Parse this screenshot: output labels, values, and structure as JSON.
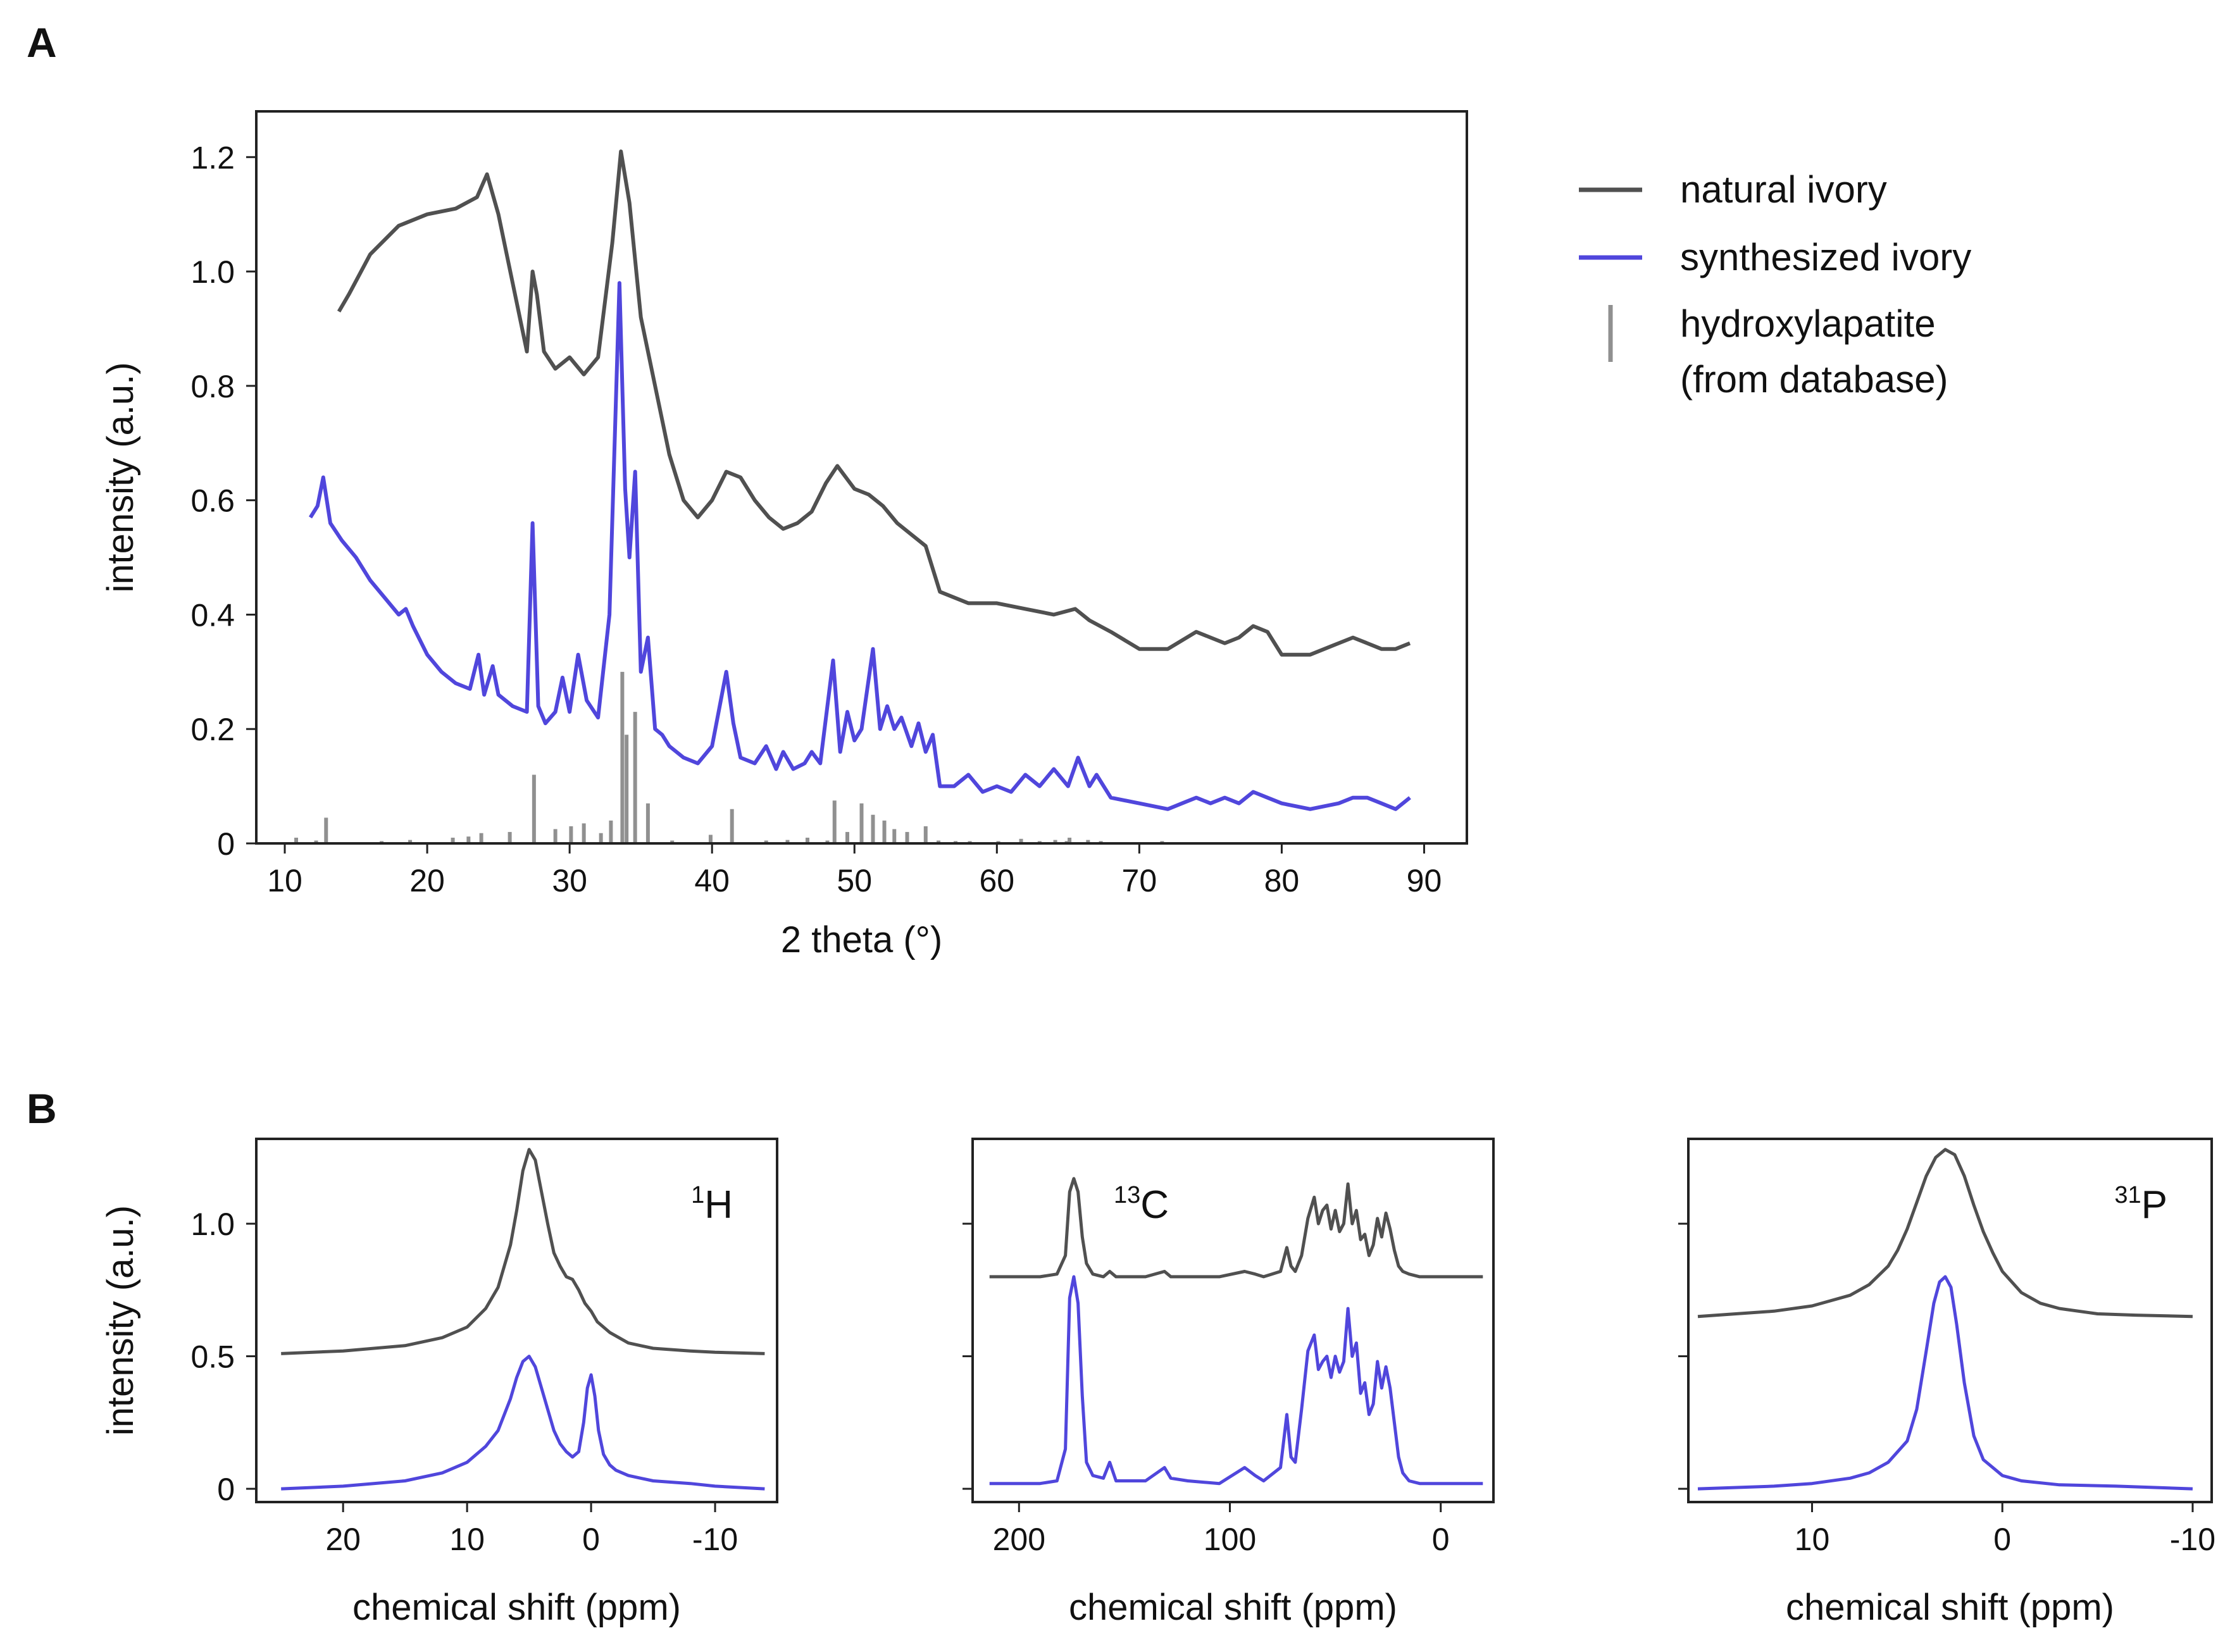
{
  "colors": {
    "natural": "#505050",
    "synthesized": "#5046dc",
    "reference": "#909090",
    "axis": "#222222"
  },
  "panel_labels": {
    "a": "A",
    "b": "B"
  },
  "legend": {
    "natural": "natural ivory",
    "synthesized": "synthesized ivory",
    "reference_line1": "hydroxylapatite",
    "reference_line2": "(from database)"
  },
  "chart_data": [
    {
      "id": "xrd",
      "type": "line",
      "panel": "A",
      "xlabel": "2 theta (°)",
      "ylabel": "intensity (a.u.)",
      "xlim": [
        8,
        93
      ],
      "ylim": [
        0,
        1.28
      ],
      "xticks": [
        10,
        20,
        30,
        40,
        50,
        60,
        70,
        80,
        90
      ],
      "yticks": [
        0,
        0.2,
        0.4,
        0.6,
        0.8,
        1.0,
        1.2
      ],
      "ytick_labels": [
        "0",
        "0.2",
        "0.4",
        "0.6",
        "0.8",
        "1.0",
        "1.2"
      ],
      "series": [
        {
          "name": "natural ivory",
          "color_key": "natural",
          "x": [
            13.8,
            14.5,
            16,
            18,
            20,
            22,
            23.5,
            24.2,
            25,
            26,
            27,
            27.4,
            27.7,
            28.2,
            29,
            30,
            31,
            32,
            33,
            33.6,
            34.2,
            35,
            36,
            37,
            38,
            39,
            40,
            41,
            42,
            43,
            44,
            45,
            46,
            47,
            48,
            48.8,
            50,
            51,
            52,
            53,
            54,
            55,
            56,
            58,
            60,
            62,
            64,
            65.5,
            66.5,
            68,
            70,
            72,
            74,
            75,
            76,
            77,
            78,
            79,
            80,
            82,
            84,
            85,
            86,
            87,
            88,
            89
          ],
          "y": [
            0.93,
            0.96,
            1.03,
            1.08,
            1.1,
            1.11,
            1.13,
            1.17,
            1.1,
            0.98,
            0.86,
            1.0,
            0.96,
            0.86,
            0.83,
            0.85,
            0.82,
            0.85,
            1.05,
            1.21,
            1.12,
            0.92,
            0.8,
            0.68,
            0.6,
            0.57,
            0.6,
            0.65,
            0.64,
            0.6,
            0.57,
            0.55,
            0.56,
            0.58,
            0.63,
            0.66,
            0.62,
            0.61,
            0.59,
            0.56,
            0.54,
            0.52,
            0.44,
            0.42,
            0.42,
            0.41,
            0.4,
            0.41,
            0.39,
            0.37,
            0.34,
            0.34,
            0.37,
            0.36,
            0.35,
            0.36,
            0.38,
            0.37,
            0.33,
            0.33,
            0.35,
            0.36,
            0.35,
            0.34,
            0.34,
            0.35
          ]
        },
        {
          "name": "synthesized ivory",
          "color_key": "synthesized",
          "x": [
            11.8,
            12.3,
            12.7,
            13.2,
            14,
            15,
            16,
            17,
            18,
            18.5,
            19,
            20,
            21,
            22,
            23,
            23.6,
            24,
            24.6,
            25,
            26,
            27,
            27.4,
            27.8,
            28.3,
            29,
            29.5,
            30,
            30.6,
            31.2,
            32,
            32.8,
            33.5,
            33.9,
            34.2,
            34.6,
            35,
            35.5,
            36,
            36.5,
            37,
            38,
            39,
            40,
            41,
            41.5,
            42,
            43,
            43.8,
            44.5,
            45,
            45.7,
            46.5,
            47,
            47.6,
            48.5,
            49,
            49.5,
            50,
            50.5,
            51.3,
            51.8,
            52.3,
            52.8,
            53.3,
            54,
            54.5,
            55,
            55.5,
            56,
            57,
            58,
            59,
            60,
            61,
            62,
            63,
            64,
            65,
            65.7,
            66.5,
            67,
            68,
            70,
            72,
            73,
            74,
            75,
            76,
            77,
            78,
            79,
            80,
            82,
            84,
            85,
            86,
            87,
            88,
            89
          ],
          "y": [
            0.57,
            0.59,
            0.64,
            0.56,
            0.53,
            0.5,
            0.46,
            0.43,
            0.4,
            0.41,
            0.38,
            0.33,
            0.3,
            0.28,
            0.27,
            0.33,
            0.26,
            0.31,
            0.26,
            0.24,
            0.23,
            0.56,
            0.24,
            0.21,
            0.23,
            0.29,
            0.23,
            0.33,
            0.25,
            0.22,
            0.4,
            0.98,
            0.62,
            0.5,
            0.65,
            0.3,
            0.36,
            0.2,
            0.19,
            0.17,
            0.15,
            0.14,
            0.17,
            0.3,
            0.21,
            0.15,
            0.14,
            0.17,
            0.13,
            0.16,
            0.13,
            0.14,
            0.16,
            0.14,
            0.32,
            0.16,
            0.23,
            0.18,
            0.2,
            0.34,
            0.2,
            0.24,
            0.2,
            0.22,
            0.17,
            0.21,
            0.16,
            0.19,
            0.1,
            0.1,
            0.12,
            0.09,
            0.1,
            0.09,
            0.12,
            0.1,
            0.13,
            0.1,
            0.15,
            0.1,
            0.12,
            0.08,
            0.07,
            0.06,
            0.07,
            0.08,
            0.07,
            0.08,
            0.07,
            0.09,
            0.08,
            0.07,
            0.06,
            0.07,
            0.08,
            0.08,
            0.07,
            0.06,
            0.08
          ]
        }
      ],
      "reference_sticks": {
        "name": "hydroxylapatite (from database)",
        "color_key": "reference",
        "x": [
          10.8,
          12.2,
          12.9,
          16.8,
          18.8,
          21.8,
          22.9,
          23.8,
          25.8,
          27.5,
          29.0,
          30.1,
          31.0,
          32.2,
          32.9,
          33.7,
          34.0,
          34.6,
          35.5,
          37.2,
          39.9,
          41.4,
          43.8,
          45.3,
          46.7,
          48.1,
          48.6,
          49.5,
          50.5,
          51.3,
          52.1,
          52.8,
          53.7,
          55.0,
          55.9,
          57.1,
          58.1,
          60.1,
          61.7,
          63.0,
          64.1,
          64.9,
          65.1,
          66.4,
          67.3,
          71.6
        ],
        "y": [
          0.01,
          0.005,
          0.045,
          0.004,
          0.006,
          0.01,
          0.012,
          0.018,
          0.02,
          0.12,
          0.025,
          0.03,
          0.035,
          0.018,
          0.04,
          0.3,
          0.19,
          0.23,
          0.07,
          0.005,
          0.015,
          0.06,
          0.005,
          0.006,
          0.01,
          0.005,
          0.075,
          0.02,
          0.07,
          0.05,
          0.04,
          0.025,
          0.02,
          0.03,
          0.005,
          0.004,
          0.004,
          0.004,
          0.008,
          0.004,
          0.006,
          0.004,
          0.01,
          0.006,
          0.004,
          0.004
        ]
      }
    },
    {
      "id": "nmr-1h",
      "type": "line",
      "panel": "B",
      "nucleus_sup": "1",
      "nucleus": "H",
      "xlabel": "chemical shift (ppm)",
      "ylabel": "intensity (a.u.)",
      "xlim": [
        27,
        -15
      ],
      "ylim": [
        -0.05,
        1.32
      ],
      "xticks": [
        20,
        10,
        0,
        -10
      ],
      "yticks": [
        0,
        0.5,
        1.0
      ],
      "ytick_labels": [
        "0",
        "0.5",
        "1.0"
      ],
      "series": [
        {
          "name": "natural ivory",
          "color_key": "natural",
          "x": [
            25,
            20,
            15,
            12,
            10,
            8.5,
            7.5,
            6.5,
            6,
            5.5,
            5,
            4.5,
            4,
            3.5,
            3,
            2.5,
            2,
            1.5,
            1,
            0.5,
            0,
            -0.5,
            -1.5,
            -3,
            -5,
            -8,
            -10,
            -14
          ],
          "y": [
            0.51,
            0.52,
            0.54,
            0.57,
            0.61,
            0.68,
            0.76,
            0.92,
            1.05,
            1.2,
            1.28,
            1.24,
            1.12,
            1.0,
            0.89,
            0.84,
            0.8,
            0.79,
            0.75,
            0.7,
            0.67,
            0.63,
            0.59,
            0.55,
            0.53,
            0.52,
            0.515,
            0.51
          ]
        },
        {
          "name": "synthesized ivory",
          "color_key": "synthesized",
          "x": [
            25,
            20,
            15,
            12,
            10,
            8.5,
            7.5,
            6.5,
            6,
            5.5,
            5,
            4.5,
            4,
            3.5,
            3,
            2.5,
            2,
            1.5,
            1,
            0.6,
            0.3,
            0,
            -0.3,
            -0.6,
            -1,
            -1.5,
            -2,
            -3,
            -5,
            -8,
            -10,
            -14
          ],
          "y": [
            0.0,
            0.01,
            0.03,
            0.06,
            0.1,
            0.16,
            0.22,
            0.34,
            0.42,
            0.48,
            0.5,
            0.46,
            0.38,
            0.3,
            0.22,
            0.17,
            0.14,
            0.12,
            0.14,
            0.25,
            0.38,
            0.43,
            0.35,
            0.22,
            0.13,
            0.09,
            0.07,
            0.05,
            0.03,
            0.02,
            0.01,
            0.0
          ]
        }
      ]
    },
    {
      "id": "nmr-13c",
      "type": "line",
      "panel": "B",
      "nucleus_sup": "13",
      "nucleus": "C",
      "xlabel": "chemical shift (ppm)",
      "ylabel": "",
      "xlim": [
        222,
        -25
      ],
      "ylim": [
        -0.05,
        1.32
      ],
      "xticks": [
        200,
        100,
        0
      ],
      "yticks": [
        0,
        0.5,
        1.0
      ],
      "ytick_labels": [
        "",
        "",
        ""
      ],
      "series": [
        {
          "name": "natural ivory",
          "color_key": "natural",
          "x": [
            214,
            200,
            190,
            182,
            178,
            176,
            174,
            172,
            170,
            168,
            165,
            160,
            157,
            154,
            140,
            131,
            128,
            120,
            105,
            93,
            88,
            84,
            76,
            73,
            71,
            69,
            66,
            63,
            60,
            58,
            56,
            54,
            52,
            50,
            48,
            46,
            44,
            42,
            40,
            38,
            36,
            34,
            32,
            30,
            28,
            26,
            24,
            22,
            20,
            18,
            15,
            10,
            0,
            -10,
            -20
          ],
          "y": [
            0.8,
            0.8,
            0.8,
            0.81,
            0.88,
            1.12,
            1.17,
            1.12,
            0.95,
            0.85,
            0.81,
            0.8,
            0.82,
            0.8,
            0.8,
            0.82,
            0.8,
            0.8,
            0.8,
            0.82,
            0.81,
            0.8,
            0.82,
            0.91,
            0.84,
            0.82,
            0.88,
            1.02,
            1.1,
            1.0,
            1.05,
            1.07,
            0.98,
            1.05,
            0.97,
            1.0,
            1.15,
            1.0,
            1.05,
            0.94,
            0.96,
            0.88,
            0.92,
            1.02,
            0.95,
            1.04,
            0.98,
            0.9,
            0.84,
            0.82,
            0.81,
            0.8,
            0.8,
            0.8,
            0.8
          ]
        },
        {
          "name": "synthesized ivory",
          "color_key": "synthesized",
          "x": [
            214,
            200,
            190,
            182,
            178,
            176,
            174,
            172,
            170,
            168,
            165,
            160,
            157,
            154,
            140,
            131,
            128,
            120,
            105,
            93,
            88,
            84,
            76,
            73,
            71,
            69,
            66,
            63,
            60,
            58,
            56,
            54,
            52,
            50,
            48,
            46,
            44,
            42,
            40,
            38,
            36,
            34,
            32,
            30,
            28,
            26,
            24,
            22,
            20,
            18,
            15,
            10,
            0,
            -10,
            -20
          ],
          "y": [
            0.02,
            0.02,
            0.02,
            0.03,
            0.15,
            0.72,
            0.8,
            0.7,
            0.35,
            0.1,
            0.05,
            0.04,
            0.1,
            0.03,
            0.03,
            0.08,
            0.04,
            0.03,
            0.02,
            0.08,
            0.05,
            0.03,
            0.08,
            0.28,
            0.12,
            0.1,
            0.3,
            0.52,
            0.58,
            0.45,
            0.48,
            0.5,
            0.42,
            0.5,
            0.44,
            0.48,
            0.68,
            0.5,
            0.55,
            0.36,
            0.4,
            0.28,
            0.32,
            0.48,
            0.38,
            0.46,
            0.38,
            0.25,
            0.12,
            0.06,
            0.03,
            0.02,
            0.02,
            0.02,
            0.02
          ]
        }
      ]
    },
    {
      "id": "nmr-31p",
      "type": "line",
      "panel": "B",
      "nucleus_sup": "31",
      "nucleus": "P",
      "xlabel": "chemical shift (ppm)",
      "ylabel": "",
      "xlim": [
        16.5,
        -11
      ],
      "ylim": [
        -0.05,
        1.32
      ],
      "xticks": [
        10,
        0,
        -10
      ],
      "yticks": [
        0,
        0.5,
        1.0
      ],
      "ytick_labels": [
        "",
        "",
        ""
      ],
      "series": [
        {
          "name": "natural ivory",
          "color_key": "natural",
          "x": [
            16,
            14,
            12,
            10,
            9,
            8,
            7,
            6,
            5.5,
            5,
            4.5,
            4,
            3.5,
            3,
            2.5,
            2,
            1.5,
            1,
            0.5,
            0,
            -1,
            -2,
            -3,
            -5,
            -7,
            -10
          ],
          "y": [
            0.65,
            0.66,
            0.67,
            0.69,
            0.71,
            0.73,
            0.77,
            0.84,
            0.9,
            0.98,
            1.08,
            1.18,
            1.25,
            1.28,
            1.26,
            1.18,
            1.07,
            0.97,
            0.89,
            0.82,
            0.74,
            0.7,
            0.68,
            0.66,
            0.655,
            0.65
          ]
        },
        {
          "name": "synthesized ivory",
          "color_key": "synthesized",
          "x": [
            16,
            12,
            10,
            8,
            7,
            6,
            5,
            4.5,
            4,
            3.6,
            3.3,
            3,
            2.7,
            2.4,
            2,
            1.5,
            1,
            0,
            -1,
            -3,
            -6,
            -10
          ],
          "y": [
            0.0,
            0.01,
            0.02,
            0.04,
            0.06,
            0.1,
            0.18,
            0.3,
            0.52,
            0.7,
            0.78,
            0.8,
            0.76,
            0.62,
            0.4,
            0.2,
            0.11,
            0.05,
            0.03,
            0.015,
            0.01,
            0.0
          ]
        }
      ]
    }
  ]
}
